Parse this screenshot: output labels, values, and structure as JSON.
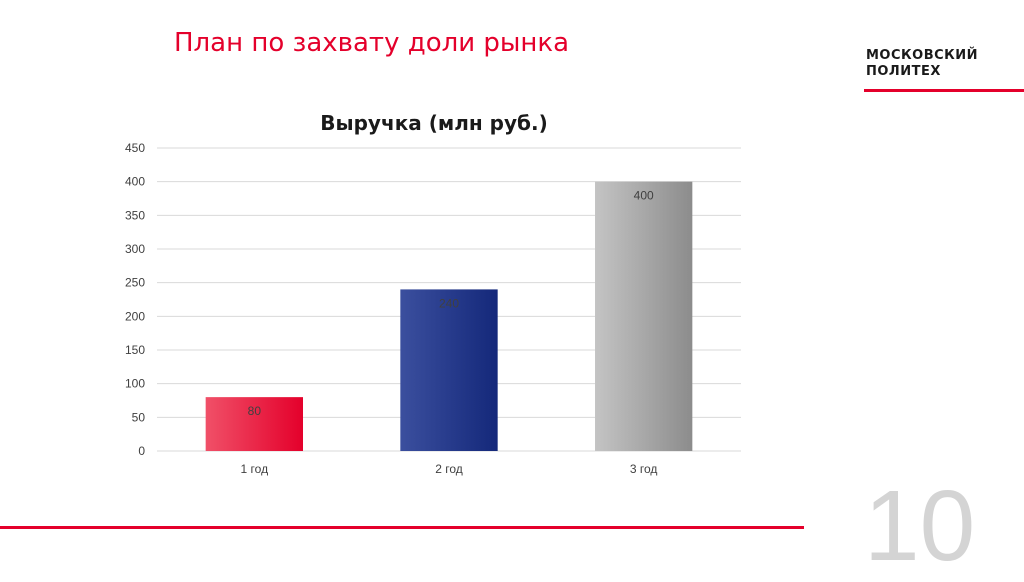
{
  "slide": {
    "title": "План по захвату доли рынка",
    "page_number": "10"
  },
  "logo": {
    "line1": "МОСКОВСКИЙ",
    "line2": "ПОЛИТЕХ"
  },
  "colors": {
    "accent": "#e4002b",
    "bar_red": "#e4002b",
    "bar_blue": "#1f3a8a",
    "bar_gray": "#9a9a9a",
    "gridline": "#d9d9d9"
  },
  "chart_data": {
    "type": "bar",
    "title": "Выручка (млн руб.)",
    "categories": [
      "1 год",
      "2 год",
      "3 год"
    ],
    "values": [
      80,
      240,
      400
    ],
    "data_labels": [
      "80",
      "240",
      "400"
    ],
    "ylim": [
      0,
      450
    ],
    "yticks": [
      0,
      50,
      100,
      150,
      200,
      250,
      300,
      350,
      400,
      450
    ],
    "grid": true,
    "legend": "none",
    "bar_colors": [
      "#e4002b",
      "#1f3a8a",
      "#9a9a9a"
    ]
  }
}
